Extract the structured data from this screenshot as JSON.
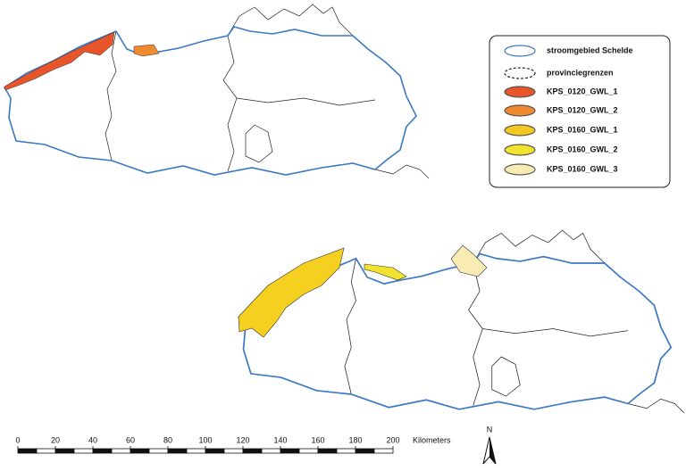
{
  "legend": {
    "items": [
      {
        "label": "stroomgebied Schelde",
        "fill": "#ffffff",
        "stroke": "#3a78c4",
        "dashed": false
      },
      {
        "label": "provinciegrenzen",
        "fill": "#ffffff",
        "stroke": "#222222",
        "dashed": true
      },
      {
        "label": "KPS_0120_GWL_1",
        "fill": "#e8552a",
        "stroke": "#555555",
        "dashed": false
      },
      {
        "label": "KPS_0120_GWL_2",
        "fill": "#f08a30",
        "stroke": "#555555",
        "dashed": false
      },
      {
        "label": "KPS_0160_GWL_1",
        "fill": "#f5c81e",
        "stroke": "#555555",
        "dashed": false
      },
      {
        "label": "KPS_0160_GWL_2",
        "fill": "#f2e22e",
        "stroke": "#555555",
        "dashed": false
      },
      {
        "label": "KPS_0160_GWL_3",
        "fill": "#f8ecb4",
        "stroke": "#555555",
        "dashed": false
      }
    ]
  },
  "scale_bar": {
    "ticks": [
      0,
      20,
      40,
      60,
      80,
      100,
      120,
      140,
      160,
      180,
      200
    ],
    "unit": "Kilometers"
  },
  "north_arrow": {
    "label": "N"
  }
}
